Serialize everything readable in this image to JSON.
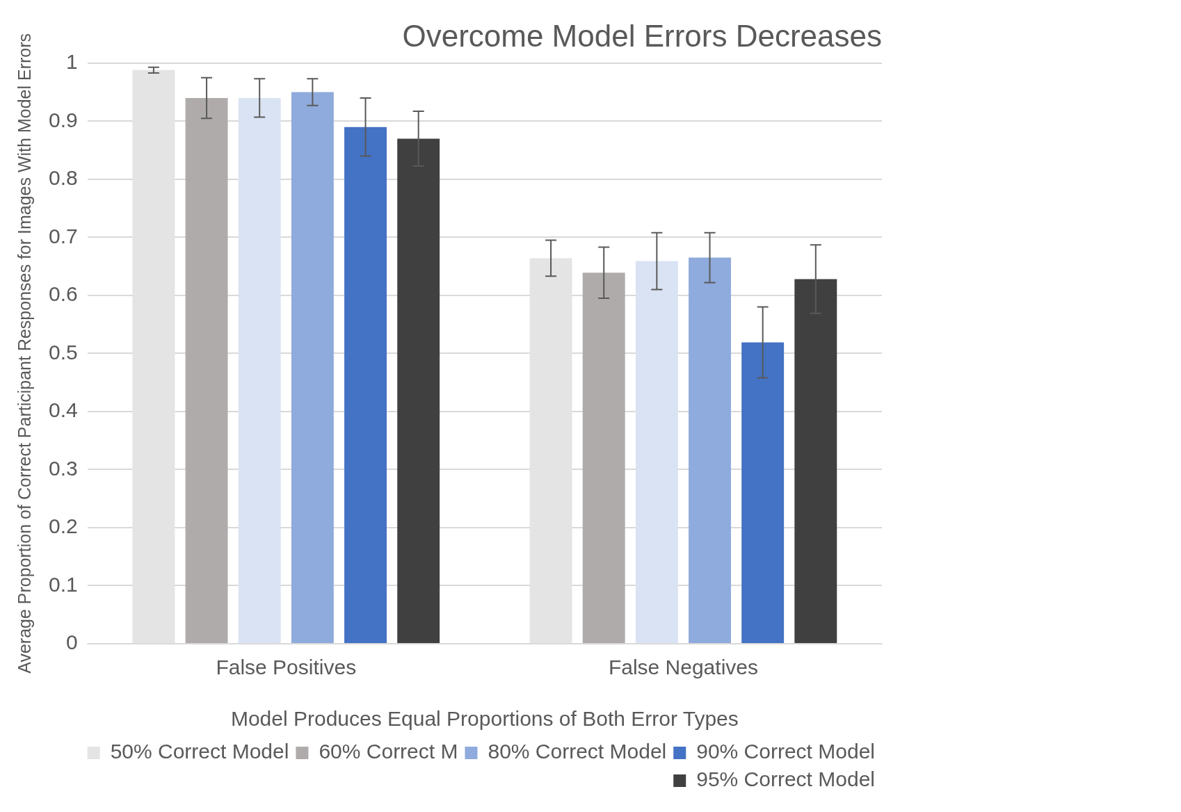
{
  "chart_data": {
    "type": "bar",
    "title": "Overcome Model Errors Decreases",
    "xlabel": "Model Produces Equal Proportions of Both Error Types",
    "ylabel": "Average Proportion of Correct Participant Responses for Images With Model Errors",
    "categories": [
      "False Positives",
      "False Negatives"
    ],
    "series": [
      {
        "name": "50% Correct Model",
        "color": "#e4e4e4",
        "values": [
          0.988,
          0.664
        ],
        "errors": [
          0.005,
          0.031
        ]
      },
      {
        "name": "60% Correct M",
        "color": "#afabab",
        "values": [
          0.94,
          0.639
        ],
        "errors": [
          0.035,
          0.044
        ]
      },
      {
        "color": "#dae3f3",
        "values": [
          0.94,
          0.659
        ],
        "errors": [
          0.033,
          0.049
        ]
      },
      {
        "name": "80% Correct Model",
        "color": "#8faadc",
        "values": [
          0.95,
          0.665
        ],
        "errors": [
          0.023,
          0.043
        ]
      },
      {
        "name": "90% Correct Model",
        "color": "#4472c4",
        "values": [
          0.89,
          0.519
        ],
        "errors": [
          0.05,
          0.061
        ]
      },
      {
        "name": "95% Correct Model",
        "color": "#404040",
        "values": [
          0.87,
          0.628
        ],
        "errors": [
          0.047,
          0.059
        ]
      }
    ],
    "ylim": [
      0,
      1
    ],
    "yticks": [
      0,
      0.1,
      0.2,
      0.3,
      0.4,
      0.5,
      0.6,
      0.7,
      0.8,
      0.9,
      1
    ],
    "grid": "y",
    "legend": "bottom"
  }
}
